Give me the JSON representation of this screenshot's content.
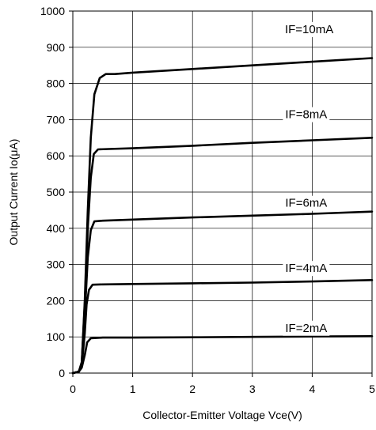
{
  "chart_data": {
    "type": "line",
    "title": "",
    "xlabel": "Collector-Emitter Voltage Vce(V)",
    "ylabel": "Output Current Io(μA)",
    "xlim": [
      0,
      5
    ],
    "ylim": [
      0,
      1000
    ],
    "x_ticks": [
      "0",
      "1",
      "2",
      "3",
      "4",
      "5"
    ],
    "y_ticks": [
      "0",
      "100",
      "200",
      "300",
      "400",
      "500",
      "600",
      "700",
      "800",
      "900",
      "1000"
    ],
    "grid": true,
    "series": [
      {
        "name": "IF=2mA",
        "points": [
          [
            0,
            0
          ],
          [
            0.1,
            4
          ],
          [
            0.15,
            15
          ],
          [
            0.2,
            50
          ],
          [
            0.24,
            85
          ],
          [
            0.3,
            96
          ],
          [
            0.5,
            98
          ],
          [
            1,
            98
          ],
          [
            2,
            99
          ],
          [
            3,
            100
          ],
          [
            4,
            101
          ],
          [
            5,
            102
          ]
        ]
      },
      {
        "name": "IF=4mA",
        "points": [
          [
            0,
            0
          ],
          [
            0.1,
            4
          ],
          [
            0.15,
            20
          ],
          [
            0.2,
            110
          ],
          [
            0.23,
            190
          ],
          [
            0.27,
            230
          ],
          [
            0.33,
            244
          ],
          [
            0.5,
            245
          ],
          [
            1,
            246
          ],
          [
            2,
            248
          ],
          [
            3,
            250
          ],
          [
            4,
            253
          ],
          [
            5,
            257
          ]
        ]
      },
      {
        "name": "IF=6mA",
        "points": [
          [
            0,
            0
          ],
          [
            0.1,
            4
          ],
          [
            0.15,
            25
          ],
          [
            0.2,
            160
          ],
          [
            0.25,
            320
          ],
          [
            0.3,
            395
          ],
          [
            0.36,
            419
          ],
          [
            0.5,
            421
          ],
          [
            1,
            424
          ],
          [
            2,
            430
          ],
          [
            3,
            435
          ],
          [
            4,
            440
          ],
          [
            5,
            446
          ]
        ]
      },
      {
        "name": "IF=8mA",
        "points": [
          [
            0,
            0
          ],
          [
            0.1,
            4
          ],
          [
            0.15,
            30
          ],
          [
            0.2,
            190
          ],
          [
            0.25,
            400
          ],
          [
            0.3,
            540
          ],
          [
            0.35,
            605
          ],
          [
            0.42,
            618
          ],
          [
            0.6,
            619
          ],
          [
            1,
            621
          ],
          [
            2,
            628
          ],
          [
            3,
            636
          ],
          [
            4,
            643
          ],
          [
            5,
            650
          ]
        ]
      },
      {
        "name": "IF=10mA",
        "points": [
          [
            0,
            0
          ],
          [
            0.1,
            4
          ],
          [
            0.15,
            30
          ],
          [
            0.2,
            200
          ],
          [
            0.25,
            450
          ],
          [
            0.3,
            650
          ],
          [
            0.36,
            770
          ],
          [
            0.45,
            815
          ],
          [
            0.55,
            826
          ],
          [
            0.7,
            826
          ],
          [
            1,
            830
          ],
          [
            2,
            840
          ],
          [
            3,
            850
          ],
          [
            4,
            860
          ],
          [
            5,
            870
          ]
        ]
      }
    ],
    "series_label_positions": [
      {
        "name": "IF=2mA",
        "x": 3.9,
        "y": 125
      },
      {
        "name": "IF=4mA",
        "x": 3.9,
        "y": 290
      },
      {
        "name": "IF=6mA",
        "x": 3.9,
        "y": 470
      },
      {
        "name": "IF=8mA",
        "x": 3.9,
        "y": 715
      },
      {
        "name": "IF=10mA",
        "x": 3.95,
        "y": 950
      }
    ]
  }
}
